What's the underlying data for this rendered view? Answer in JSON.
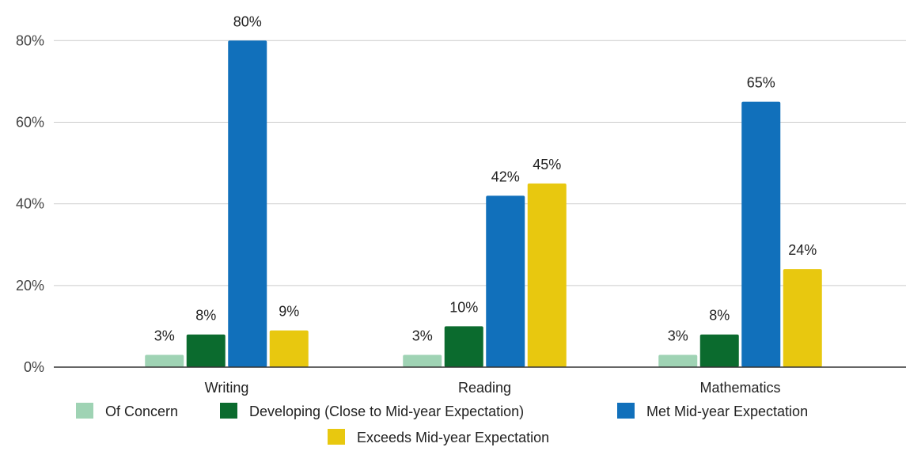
{
  "chart_data": {
    "type": "bar",
    "categories": [
      "Writing",
      "Reading",
      "Mathematics"
    ],
    "series": [
      {
        "name": "Of Concern",
        "color": "#9fd3b4",
        "values": [
          3,
          3,
          3
        ],
        "labels": [
          "3%",
          "3%",
          "3%"
        ]
      },
      {
        "name": "Developing (Close to Mid-year Expectation)",
        "color": "#0b6b2e",
        "values": [
          8,
          10,
          8
        ],
        "labels": [
          "8%",
          "10%",
          "8%"
        ]
      },
      {
        "name": "Met Mid-year Expectation",
        "color": "#1170bb",
        "values": [
          80,
          42,
          65
        ],
        "labels": [
          "80%",
          "42%",
          "65%"
        ]
      },
      {
        "name": "Exceeds Mid-year Expectation",
        "color": "#e8c80f",
        "values": [
          9,
          45,
          24
        ],
        "labels": [
          "9%",
          "45%",
          "24%"
        ]
      }
    ],
    "yticks": [
      0,
      20,
      40,
      60,
      80
    ],
    "ytick_labels": [
      "0%",
      "20%",
      "40%",
      "60%",
      "80%"
    ],
    "ylim": [
      0,
      88
    ],
    "grid": true,
    "legend": "bottom"
  }
}
